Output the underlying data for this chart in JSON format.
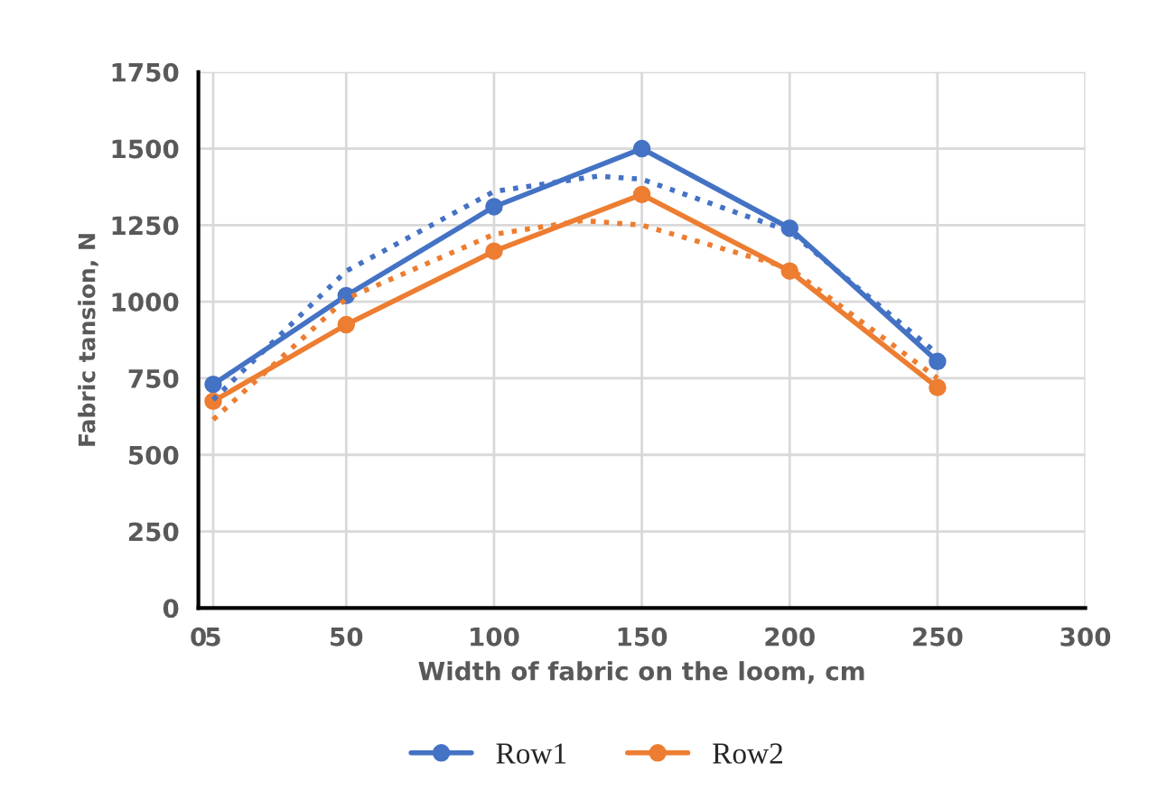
{
  "chart_data": {
    "type": "line",
    "xlabel": "Width of fabric on the loom, cm",
    "ylabel": "Fabric tansion, N",
    "x": [
      5,
      50,
      100,
      150,
      200,
      250
    ],
    "series": [
      {
        "name": "Row1",
        "color": "#4472c4",
        "values": [
          730,
          1020,
          1310,
          1500,
          1240,
          805
        ]
      },
      {
        "name": "Row2",
        "color": "#ed7d31",
        "values": [
          675,
          925,
          1165,
          1350,
          1100,
          720
        ]
      },
      {
        "type": "line",
        "color": "#4472c4",
        "x": [
          5,
          50,
          100,
          135,
          150,
          200,
          250
        ],
        "values": [
          680,
          1100,
          1360,
          1410,
          1400,
          1230,
          830
        ],
        "line_style": "dotted",
        "marker": "none"
      },
      {
        "type": "line",
        "color": "#ed7d31",
        "x": [
          5,
          50,
          100,
          130,
          150,
          200,
          250
        ],
        "values": [
          615,
          1010,
          1220,
          1265,
          1250,
          1110,
          750
        ],
        "line_style": "dotted",
        "marker": "none"
      }
    ],
    "xlim": [
      0,
      300
    ],
    "xticks": [
      0,
      5,
      50,
      100,
      150,
      200,
      250,
      300
    ],
    "ylim": [
      0,
      1750
    ],
    "yticks": [
      0,
      250,
      500,
      750,
      1000,
      1250,
      1500,
      1750
    ],
    "grid": true,
    "legend": "bottom",
    "marker": "circle",
    "line_style": "solid"
  }
}
